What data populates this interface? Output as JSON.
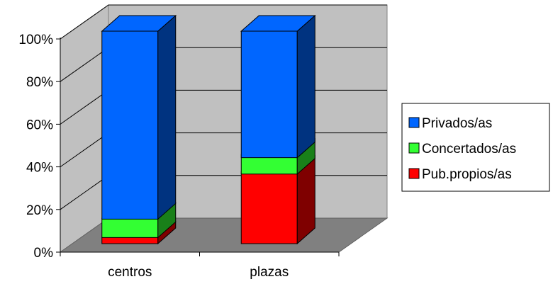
{
  "chart_data": {
    "type": "bar",
    "stacked": "percent",
    "three_d": true,
    "title": "",
    "xlabel": "",
    "ylabel": "",
    "ylim": [
      0,
      100
    ],
    "y_ticks": [
      "0%",
      "20%",
      "40%",
      "60%",
      "80%",
      "100%"
    ],
    "categories": [
      "centros",
      "plazas"
    ],
    "series": [
      {
        "name": "Pub.propios/as",
        "values": [
          3,
          34
        ],
        "color": "#ff0000",
        "side_color": "#7f0000",
        "top_color": "#ff0000"
      },
      {
        "name": "Concertados/as",
        "values": [
          9,
          8
        ],
        "color": "#33ff33",
        "side_color": "#198019",
        "top_color": "#33ff33"
      },
      {
        "name": "Privados/as",
        "values": [
          88,
          58
        ],
        "color": "#0066ff",
        "side_color": "#003380",
        "top_color": "#0066ff"
      }
    ],
    "legend_position": "right",
    "legend_order": [
      "Privados/as",
      "Concertados/as",
      "Pub.propios/as"
    ],
    "grid": true,
    "walls": {
      "back": "#c0c0c0",
      "floor": "#808080"
    }
  }
}
